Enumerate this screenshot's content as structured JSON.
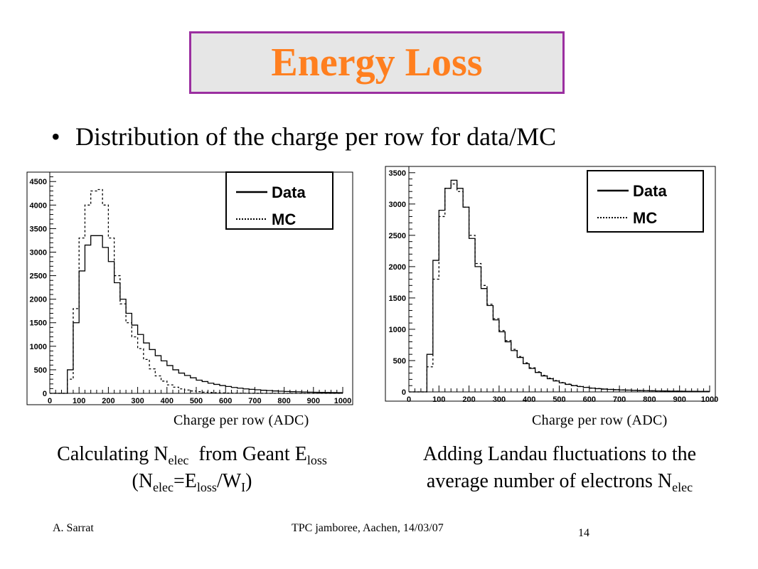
{
  "slide": {
    "title": "Energy Loss",
    "bullet": "Distribution of the charge per row for data/MC",
    "footer_left": "A. Sarrat",
    "footer_center": "TPC jamboree, Aachen, 14/03/07",
    "page_number": "14",
    "colors": {
      "title_text": "#ff7f1f",
      "title_border": "#9b2fa0",
      "title_bg": "#e6e6e6"
    }
  },
  "captions": [
    {
      "line1": [
        {
          "t": "Calculating N"
        },
        {
          "sub": "elec"
        },
        {
          "t": "  from Geant E"
        },
        {
          "sub": "loss"
        }
      ],
      "line2": [
        {
          "t": "(N"
        },
        {
          "sub": "elec"
        },
        {
          "t": "=E"
        },
        {
          "sub": "loss"
        },
        {
          "t": "/W"
        },
        {
          "sub": "I"
        },
        {
          "t": ")"
        }
      ]
    },
    {
      "line1": [
        {
          "t": "Adding Landau fluctuations to the"
        }
      ],
      "line2": [
        {
          "t": "average number of electrons N"
        },
        {
          "sub": "elec"
        }
      ]
    }
  ],
  "chart_data": [
    {
      "type": "histogram",
      "xlabel": "Charge per row (ADC)",
      "xlim": [
        0,
        1000
      ],
      "ylim": [
        0,
        4700
      ],
      "xticks": [
        0,
        100,
        200,
        300,
        400,
        500,
        600,
        700,
        800,
        900,
        1000
      ],
      "yticks": [
        0,
        500,
        1000,
        1500,
        2000,
        2500,
        3000,
        3500,
        4000,
        4500
      ],
      "legend": {
        "position": "top-right",
        "entries": [
          {
            "label": "Data",
            "style": "solid"
          },
          {
            "label": "MC",
            "style": "dotted"
          }
        ]
      },
      "series": [
        {
          "name": "Data",
          "style": "solid",
          "x": [
            10,
            30,
            50,
            70,
            90,
            110,
            130,
            150,
            170,
            190,
            210,
            230,
            250,
            270,
            290,
            310,
            330,
            350,
            370,
            390,
            410,
            430,
            450,
            470,
            490,
            510,
            530,
            550,
            570,
            590,
            610,
            630,
            650,
            670,
            690,
            710,
            730,
            750,
            770,
            790,
            810,
            830,
            850,
            870,
            890,
            910,
            930,
            950,
            970,
            990
          ],
          "y": [
            0,
            0,
            0,
            500,
            1500,
            2600,
            3150,
            3350,
            3350,
            3100,
            2800,
            2350,
            2000,
            1700,
            1450,
            1250,
            1070,
            930,
            800,
            690,
            590,
            500,
            430,
            380,
            330,
            280,
            250,
            215,
            190,
            165,
            145,
            125,
            110,
            95,
            85,
            75,
            65,
            58,
            50,
            45,
            40,
            35,
            32,
            28,
            25,
            22,
            20,
            18,
            16,
            15
          ]
        },
        {
          "name": "MC",
          "style": "dotted",
          "x": [
            10,
            30,
            50,
            70,
            90,
            110,
            130,
            150,
            170,
            190,
            210,
            230,
            250,
            270,
            290,
            310,
            330,
            350,
            370,
            390,
            410,
            430,
            450,
            470,
            490,
            510,
            530,
            550,
            570,
            590,
            610,
            630,
            650,
            670,
            690,
            710,
            730,
            750,
            770,
            790,
            810,
            830,
            850,
            870,
            890,
            910,
            930,
            950,
            970,
            990
          ],
          "y": [
            0,
            0,
            0,
            300,
            1800,
            3300,
            4000,
            4300,
            4330,
            4000,
            3300,
            2500,
            1900,
            1500,
            1200,
            950,
            720,
            520,
            370,
            260,
            180,
            130,
            95,
            70,
            50,
            35,
            25,
            18,
            12,
            9,
            6,
            4,
            3,
            2,
            1,
            1,
            0,
            0,
            0,
            0,
            0,
            0,
            0,
            0,
            0,
            0,
            0,
            0,
            0,
            0
          ]
        }
      ]
    },
    {
      "type": "histogram",
      "xlabel": "Charge per row (ADC)",
      "xlim": [
        0,
        1000
      ],
      "ylim": [
        0,
        3600
      ],
      "xticks": [
        0,
        100,
        200,
        300,
        400,
        500,
        600,
        700,
        800,
        900,
        1000
      ],
      "yticks": [
        0,
        500,
        1000,
        1500,
        2000,
        2500,
        3000,
        3500
      ],
      "legend": {
        "position": "top-right",
        "entries": [
          {
            "label": "Data",
            "style": "solid"
          },
          {
            "label": "MC",
            "style": "dotted"
          }
        ]
      },
      "series": [
        {
          "name": "Data",
          "style": "solid",
          "x": [
            10,
            30,
            50,
            70,
            90,
            110,
            130,
            150,
            170,
            190,
            210,
            230,
            250,
            270,
            290,
            310,
            330,
            350,
            370,
            390,
            410,
            430,
            450,
            470,
            490,
            510,
            530,
            550,
            570,
            590,
            610,
            630,
            650,
            670,
            690,
            710,
            730,
            750,
            770,
            790,
            810,
            830,
            850,
            870,
            890,
            910,
            930,
            950,
            970,
            990
          ],
          "y": [
            0,
            0,
            0,
            600,
            2100,
            2900,
            3250,
            3380,
            3250,
            2950,
            2450,
            2000,
            1650,
            1380,
            1150,
            960,
            800,
            660,
            550,
            450,
            375,
            310,
            255,
            210,
            175,
            145,
            120,
            100,
            85,
            72,
            60,
            52,
            45,
            40,
            35,
            31,
            28,
            25,
            22,
            20,
            18,
            16,
            15,
            13,
            12,
            11,
            10,
            9,
            8,
            8
          ]
        },
        {
          "name": "MC",
          "style": "dotted",
          "x": [
            10,
            30,
            50,
            70,
            90,
            110,
            130,
            150,
            170,
            190,
            210,
            230,
            250,
            270,
            290,
            310,
            330,
            350,
            370,
            390,
            410,
            430,
            450,
            470,
            490,
            510,
            530,
            550,
            570,
            590,
            610,
            630,
            650,
            670,
            690,
            710,
            730,
            750,
            770,
            790,
            810,
            830,
            850,
            870,
            890,
            910,
            930,
            950,
            970,
            990
          ],
          "y": [
            0,
            0,
            0,
            400,
            1800,
            2800,
            3250,
            3320,
            3200,
            2950,
            2500,
            2050,
            1700,
            1400,
            1170,
            980,
            820,
            680,
            565,
            465,
            385,
            320,
            265,
            220,
            182,
            150,
            125,
            104,
            88,
            74,
            62,
            53,
            46,
            40,
            35,
            31,
            28,
            25,
            22,
            20,
            18,
            16,
            15,
            13,
            12,
            11,
            10,
            9,
            8,
            8
          ]
        }
      ]
    }
  ]
}
